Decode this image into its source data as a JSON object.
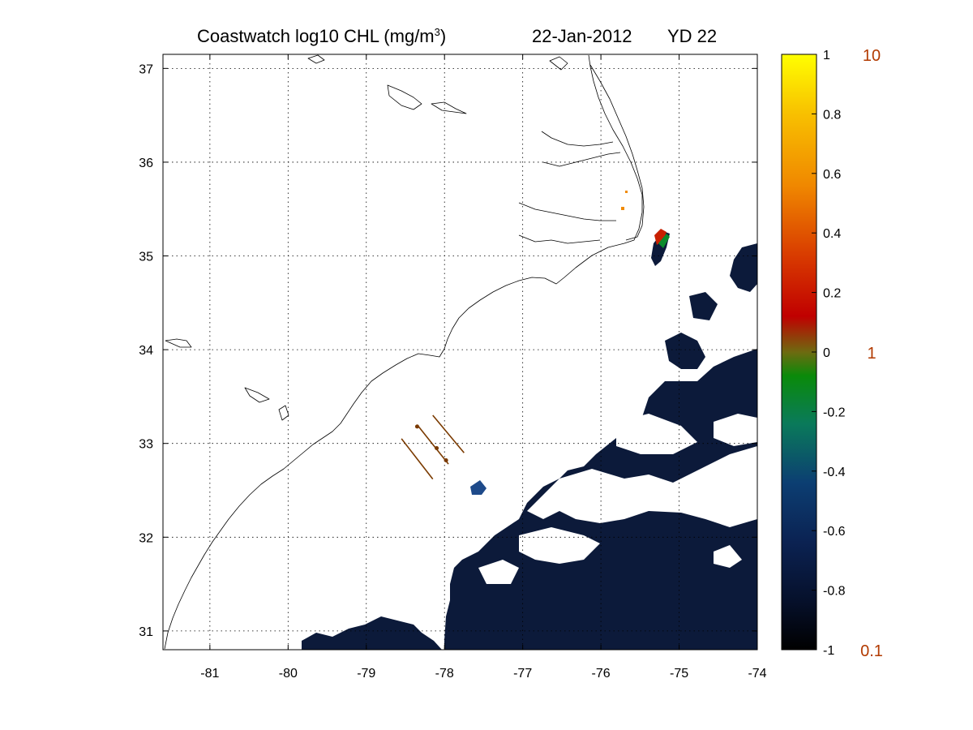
{
  "title": {
    "main": "Coastwatch  log10  CHL (mg/m",
    "superscript": "3",
    "close": ")",
    "date": "22-Jan-2012",
    "yearday": "YD 22"
  },
  "map": {
    "lon_range": [
      -81.6,
      -74.0
    ],
    "lat_range": [
      30.8,
      37.15
    ],
    "x_ticks": [
      "-81",
      "-80",
      "-79",
      "-78",
      "-77",
      "-76",
      "-75",
      "-74"
    ],
    "x_tick_values": [
      -81,
      -80,
      -79,
      -78,
      -77,
      -76,
      -75,
      -74
    ],
    "y_ticks": [
      "37",
      "36",
      "35",
      "34",
      "33",
      "32",
      "31"
    ],
    "y_tick_values": [
      37,
      36,
      35,
      34,
      33,
      32,
      31
    ],
    "grid": "dotted",
    "coastline_color": "#000000",
    "cloud_color": "#ffffff",
    "low_chl_color": "#0c1a3a",
    "glider_color": "#7a3a00",
    "glider_tracks": [
      {
        "from": [
          -78.55,
          33.05
        ],
        "to": [
          -78.15,
          32.62
        ]
      },
      {
        "from": [
          -78.35,
          33.2
        ],
        "to": [
          -77.95,
          32.78
        ]
      },
      {
        "from": [
          -78.15,
          33.3
        ],
        "to": [
          -77.75,
          32.9
        ]
      }
    ]
  },
  "colorbar": {
    "ticks": [
      "1",
      "0.8",
      "0.6",
      "0.4",
      "0.2",
      "0",
      "-0.2",
      "-0.4",
      "-0.6",
      "-0.8",
      "-1"
    ],
    "tick_values": [
      1,
      0.8,
      0.6,
      0.4,
      0.2,
      0,
      -0.2,
      -0.4,
      -0.6,
      -0.8,
      -1
    ],
    "range": [
      -1,
      1
    ],
    "colors": [
      "#000000",
      "#0a1a3a",
      "#0c3a6e",
      "#0a8a5a",
      "#0a8a0a",
      "#7a5a1a",
      "#c82000",
      "#e05000",
      "#f08a00",
      "#f8c000",
      "#ffff00"
    ],
    "ref_labels": [
      {
        "text": "10",
        "value": 1
      },
      {
        "text": "1",
        "value": 0
      },
      {
        "text": "0.1",
        "value": -1
      }
    ],
    "ref_color": "#b23a00"
  }
}
